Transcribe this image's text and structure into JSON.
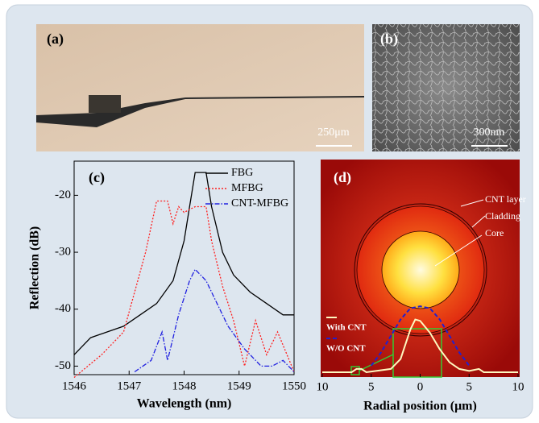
{
  "panels": {
    "a": {
      "label": "(a)",
      "scale": "250μm"
    },
    "b": {
      "label": "(b)",
      "scale": "300nm"
    }
  },
  "chart_data": [
    {
      "type": "line",
      "label": "(c)",
      "xlabel": "Wavelength (nm)",
      "ylabel": "Reflection (dB)",
      "xlim": [
        1546,
        1550
      ],
      "xticks": [
        1546,
        1547,
        1548,
        1549,
        1550
      ],
      "ylim": [
        -51.5,
        -14
      ],
      "yticks": [
        -50,
        -40,
        -30,
        -20
      ],
      "series": [
        {
          "name": "FBG",
          "color": "#000000",
          "style": "solid",
          "x": [
            1546,
            1546.3,
            1546.6,
            1546.9,
            1547.2,
            1547.5,
            1547.8,
            1548.0,
            1548.1,
            1548.2,
            1548.4,
            1548.5,
            1548.7,
            1548.9,
            1549.2,
            1549.5,
            1549.8,
            1550
          ],
          "values": [
            -48,
            -45,
            -44,
            -43,
            -41,
            -39,
            -35,
            -28,
            -22,
            -16,
            -16,
            -22,
            -30,
            -34,
            -37,
            -39,
            -41,
            -41
          ]
        },
        {
          "name": "MFBG",
          "color": "#ff2020",
          "style": "dotted",
          "x": [
            1546,
            1546.5,
            1546.9,
            1547.1,
            1547.3,
            1547.5,
            1547.7,
            1547.8,
            1547.9,
            1548.0,
            1548.2,
            1548.4,
            1548.5,
            1548.7,
            1548.9,
            1549.1,
            1549.3,
            1549.5,
            1549.7,
            1550
          ],
          "values": [
            -52,
            -48,
            -44,
            -37,
            -30,
            -21,
            -21,
            -25,
            -22,
            -23,
            -22,
            -22,
            -28,
            -36,
            -42,
            -50,
            -42,
            -48,
            -44,
            -51
          ]
        },
        {
          "name": "CNT-MFBG",
          "color": "#2020e0",
          "style": "dashdot",
          "x": [
            1547.1,
            1547.4,
            1547.6,
            1547.7,
            1547.9,
            1548.1,
            1548.2,
            1548.4,
            1548.6,
            1548.8,
            1549.1,
            1549.4,
            1549.6,
            1549.8,
            1550
          ],
          "values": [
            -51,
            -49,
            -44,
            -49,
            -41,
            -35,
            -33,
            -35,
            -39,
            -43,
            -47,
            -50,
            -50,
            -49,
            -51
          ]
        }
      ]
    },
    {
      "type": "mode",
      "label": "(d)",
      "xlabel": "Radial position (μm)",
      "annotations": [
        "CNT layer",
        "Cladding",
        "Core"
      ],
      "xlim": [
        -10,
        10
      ],
      "xticks": [
        {
          "value": -10,
          "label": "10"
        },
        {
          "value": -5,
          "label": "5"
        },
        0,
        5,
        10
      ],
      "ylim": [
        0,
        1.1
      ],
      "series": [
        {
          "name": "With CNT",
          "color": "#fff8c0",
          "style": "solid",
          "x": [
            -10,
            -7,
            -6.5,
            -6,
            -5.5,
            -3,
            -2,
            -1,
            -0.5,
            0,
            1,
            2,
            3,
            4,
            5,
            6,
            6.5,
            10
          ],
          "values": [
            0,
            0,
            0.05,
            0.05,
            0,
            0.05,
            0.2,
            0.65,
            0.8,
            0.78,
            0.6,
            0.35,
            0.15,
            0.05,
            0.02,
            0.05,
            0,
            0
          ]
        },
        {
          "name": "W/O CNT",
          "color": "#2020d0",
          "style": "dashed",
          "x": [
            -5,
            -4,
            -3,
            -2,
            -1,
            0,
            1,
            2,
            3,
            4,
            5
          ],
          "values": [
            0.1,
            0.3,
            0.55,
            0.8,
            0.97,
            1,
            0.97,
            0.8,
            0.55,
            0.3,
            0.1
          ]
        }
      ]
    }
  ]
}
